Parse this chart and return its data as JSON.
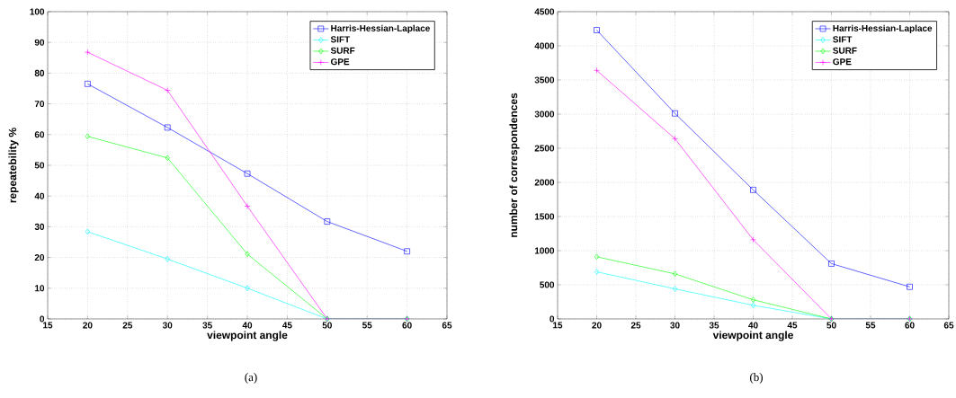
{
  "chart_data": [
    {
      "type": "line",
      "xlabel": "viewpoint angle",
      "ylabel": "repeatebility %",
      "annotations": [
        "(a)"
      ],
      "x": [
        20,
        30,
        40,
        50,
        60
      ],
      "xlim": [
        15,
        65
      ],
      "xticks": [
        15,
        20,
        25,
        30,
        35,
        40,
        45,
        50,
        55,
        60,
        65
      ],
      "ylim": [
        0,
        100
      ],
      "yticks": [
        0,
        10,
        20,
        30,
        40,
        50,
        60,
        70,
        80,
        90,
        100
      ],
      "grid": true,
      "legend": "top right",
      "series": [
        {
          "name": "Harris-Hessian-Laplace",
          "color": "#0000ff",
          "marker": "square",
          "values": [
            76.5,
            62.3,
            47.3,
            31.7,
            22.0
          ]
        },
        {
          "name": "SIFT",
          "color": "#00ffff",
          "marker": "diamond",
          "values": [
            28.4,
            19.5,
            10.0,
            0,
            0
          ]
        },
        {
          "name": "SURF",
          "color": "#00ff00",
          "marker": "diamond",
          "values": [
            59.4,
            52.4,
            21.1,
            0,
            0
          ]
        },
        {
          "name": "GPE",
          "color": "#ff00ff",
          "marker": "cross",
          "values": [
            86.8,
            74.4,
            36.7,
            0,
            0
          ]
        }
      ]
    },
    {
      "type": "line",
      "xlabel": "viewpoint angle",
      "ylabel": "number of correspondences",
      "annotations": [
        "(b)"
      ],
      "x": [
        20,
        30,
        40,
        50,
        60
      ],
      "xlim": [
        15,
        65
      ],
      "xticks": [
        15,
        20,
        25,
        30,
        35,
        40,
        45,
        50,
        55,
        60,
        65
      ],
      "ylim": [
        0,
        4500
      ],
      "yticks": [
        0,
        500,
        1000,
        1500,
        2000,
        2500,
        3000,
        3500,
        4000,
        4500
      ],
      "grid": true,
      "legend": "top right",
      "series": [
        {
          "name": "Harris-Hessian-Laplace",
          "color": "#0000ff",
          "marker": "square",
          "values": [
            4230,
            3010,
            1890,
            810,
            470
          ]
        },
        {
          "name": "SIFT",
          "color": "#00ffff",
          "marker": "diamond",
          "values": [
            690,
            440,
            200,
            0,
            0
          ]
        },
        {
          "name": "SURF",
          "color": "#00ff00",
          "marker": "diamond",
          "values": [
            910,
            660,
            280,
            0,
            0
          ]
        },
        {
          "name": "GPE",
          "color": "#ff00ff",
          "marker": "cross",
          "values": [
            3640,
            2640,
            1160,
            0,
            0
          ]
        }
      ]
    }
  ]
}
